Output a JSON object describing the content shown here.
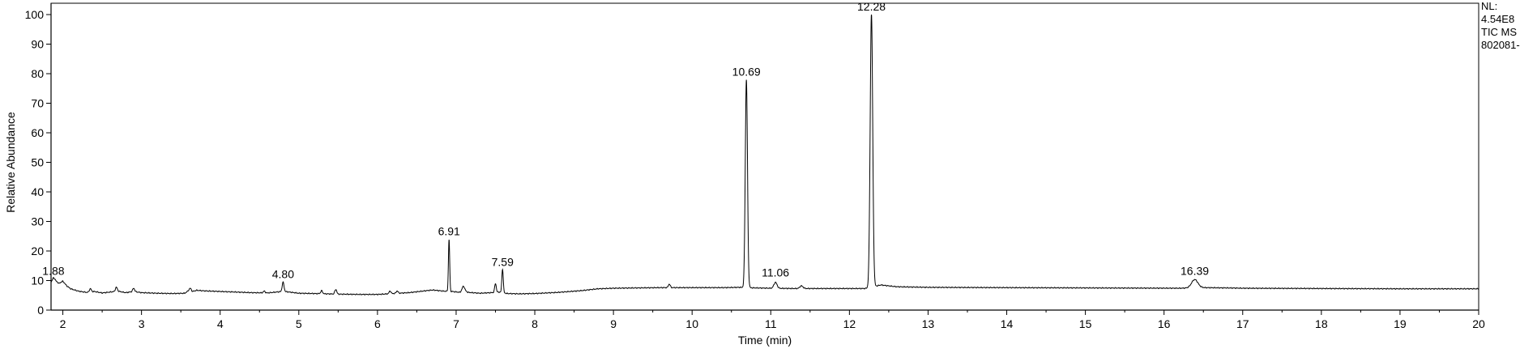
{
  "chart_data": {
    "type": "line",
    "xlabel": "Time (min)",
    "ylabel": "Relative Abundance",
    "xlim": [
      1.85,
      20
    ],
    "ylim": [
      0,
      100
    ],
    "x_ticks": [
      2,
      3,
      4,
      5,
      6,
      7,
      8,
      9,
      10,
      11,
      12,
      13,
      14,
      15,
      16,
      17,
      18,
      19,
      20
    ],
    "y_ticks": [
      0,
      10,
      20,
      30,
      40,
      50,
      60,
      70,
      80,
      90,
      100
    ],
    "info": [
      "NL:",
      "4.54E8",
      "TIC MS",
      "802081-"
    ],
    "peak_labels": [
      {
        "x": 1.88,
        "y": 10.5,
        "label": "1.88"
      },
      {
        "x": 4.8,
        "y": 9.5,
        "label": "4.80"
      },
      {
        "x": 6.91,
        "y": 24,
        "label": "6.91"
      },
      {
        "x": 7.59,
        "y": 13.5,
        "label": "7.59"
      },
      {
        "x": 10.69,
        "y": 78,
        "label": "10.69"
      },
      {
        "x": 11.06,
        "y": 10,
        "label": "11.06"
      },
      {
        "x": 12.28,
        "y": 100,
        "label": "12.28"
      },
      {
        "x": 16.39,
        "y": 10.5,
        "label": "16.39"
      }
    ],
    "baseline": [
      [
        1.85,
        9.5
      ],
      [
        1.9,
        10.2
      ],
      [
        1.95,
        9.0
      ],
      [
        2.0,
        9.8
      ],
      [
        2.05,
        8.2
      ],
      [
        2.1,
        7.2
      ],
      [
        2.2,
        6.4
      ],
      [
        2.3,
        6.0
      ],
      [
        2.4,
        6.3
      ],
      [
        2.5,
        5.8
      ],
      [
        2.6,
        6.1
      ],
      [
        2.7,
        6.4
      ],
      [
        2.8,
        5.9
      ],
      [
        2.9,
        6.3
      ],
      [
        3.0,
        5.9
      ],
      [
        3.2,
        5.7
      ],
      [
        3.4,
        5.6
      ],
      [
        3.55,
        5.7
      ],
      [
        3.6,
        6.6
      ],
      [
        3.65,
        6.3
      ],
      [
        3.7,
        6.7
      ],
      [
        3.8,
        6.5
      ],
      [
        4.0,
        6.3
      ],
      [
        4.2,
        6.1
      ],
      [
        4.4,
        5.9
      ],
      [
        4.6,
        5.8
      ],
      [
        4.75,
        6.2
      ],
      [
        4.85,
        6.2
      ],
      [
        5.0,
        5.7
      ],
      [
        5.2,
        5.6
      ],
      [
        5.5,
        5.4
      ],
      [
        5.8,
        5.3
      ],
      [
        6.0,
        5.3
      ],
      [
        6.2,
        5.6
      ],
      [
        6.4,
        5.9
      ],
      [
        6.6,
        6.5
      ],
      [
        6.7,
        6.8
      ],
      [
        6.85,
        6.4
      ],
      [
        6.95,
        6.3
      ],
      [
        7.05,
        6.0
      ],
      [
        7.1,
        6.9
      ],
      [
        7.15,
        6.0
      ],
      [
        7.3,
        5.7
      ],
      [
        7.45,
        5.9
      ],
      [
        7.55,
        6.1
      ],
      [
        7.65,
        5.6
      ],
      [
        7.8,
        5.5
      ],
      [
        8.0,
        5.6
      ],
      [
        8.3,
        6.0
      ],
      [
        8.6,
        6.6
      ],
      [
        8.8,
        7.2
      ],
      [
        9.0,
        7.4
      ],
      [
        9.3,
        7.5
      ],
      [
        9.6,
        7.6
      ],
      [
        10.0,
        7.6
      ],
      [
        10.4,
        7.6
      ],
      [
        10.6,
        7.7
      ],
      [
        10.8,
        7.5
      ],
      [
        11.0,
        7.4
      ],
      [
        11.3,
        7.3
      ],
      [
        11.6,
        7.3
      ],
      [
        12.0,
        7.3
      ],
      [
        12.2,
        7.3
      ],
      [
        12.4,
        8.5
      ],
      [
        12.6,
        7.9
      ],
      [
        13.0,
        7.7
      ],
      [
        14.0,
        7.6
      ],
      [
        15.0,
        7.5
      ],
      [
        16.2,
        7.4
      ],
      [
        16.5,
        7.6
      ],
      [
        16.8,
        7.5
      ],
      [
        17.0,
        7.4
      ],
      [
        18.0,
        7.3
      ],
      [
        19.0,
        7.2
      ],
      [
        20.0,
        7.2
      ]
    ],
    "peaks": [
      {
        "center": 1.88,
        "height": 1.0,
        "width": 0.012
      },
      {
        "center": 2.35,
        "height": 1.1,
        "width": 0.012
      },
      {
        "center": 2.68,
        "height": 1.4,
        "width": 0.012
      },
      {
        "center": 2.9,
        "height": 1.1,
        "width": 0.012
      },
      {
        "center": 3.62,
        "height": 0.9,
        "width": 0.012
      },
      {
        "center": 4.56,
        "height": 0.6,
        "width": 0.012
      },
      {
        "center": 4.8,
        "height": 3.2,
        "width": 0.012
      },
      {
        "center": 5.29,
        "height": 1.0,
        "width": 0.012
      },
      {
        "center": 5.47,
        "height": 1.6,
        "width": 0.012
      },
      {
        "center": 6.16,
        "height": 0.9,
        "width": 0.012
      },
      {
        "center": 6.25,
        "height": 0.8,
        "width": 0.012
      },
      {
        "center": 6.91,
        "height": 17.5,
        "width": 0.008
      },
      {
        "center": 7.09,
        "height": 1.3,
        "width": 0.015
      },
      {
        "center": 7.5,
        "height": 3.0,
        "width": 0.01
      },
      {
        "center": 7.59,
        "height": 8.0,
        "width": 0.009
      },
      {
        "center": 9.71,
        "height": 1.2,
        "width": 0.012
      },
      {
        "center": 10.69,
        "height": 70.3,
        "width": 0.014
      },
      {
        "center": 11.06,
        "height": 2.0,
        "width": 0.02
      },
      {
        "center": 11.39,
        "height": 0.9,
        "width": 0.02
      },
      {
        "center": 12.28,
        "height": 92.5,
        "width": 0.016
      },
      {
        "center": 16.39,
        "height": 2.8,
        "width": 0.04
      }
    ]
  }
}
